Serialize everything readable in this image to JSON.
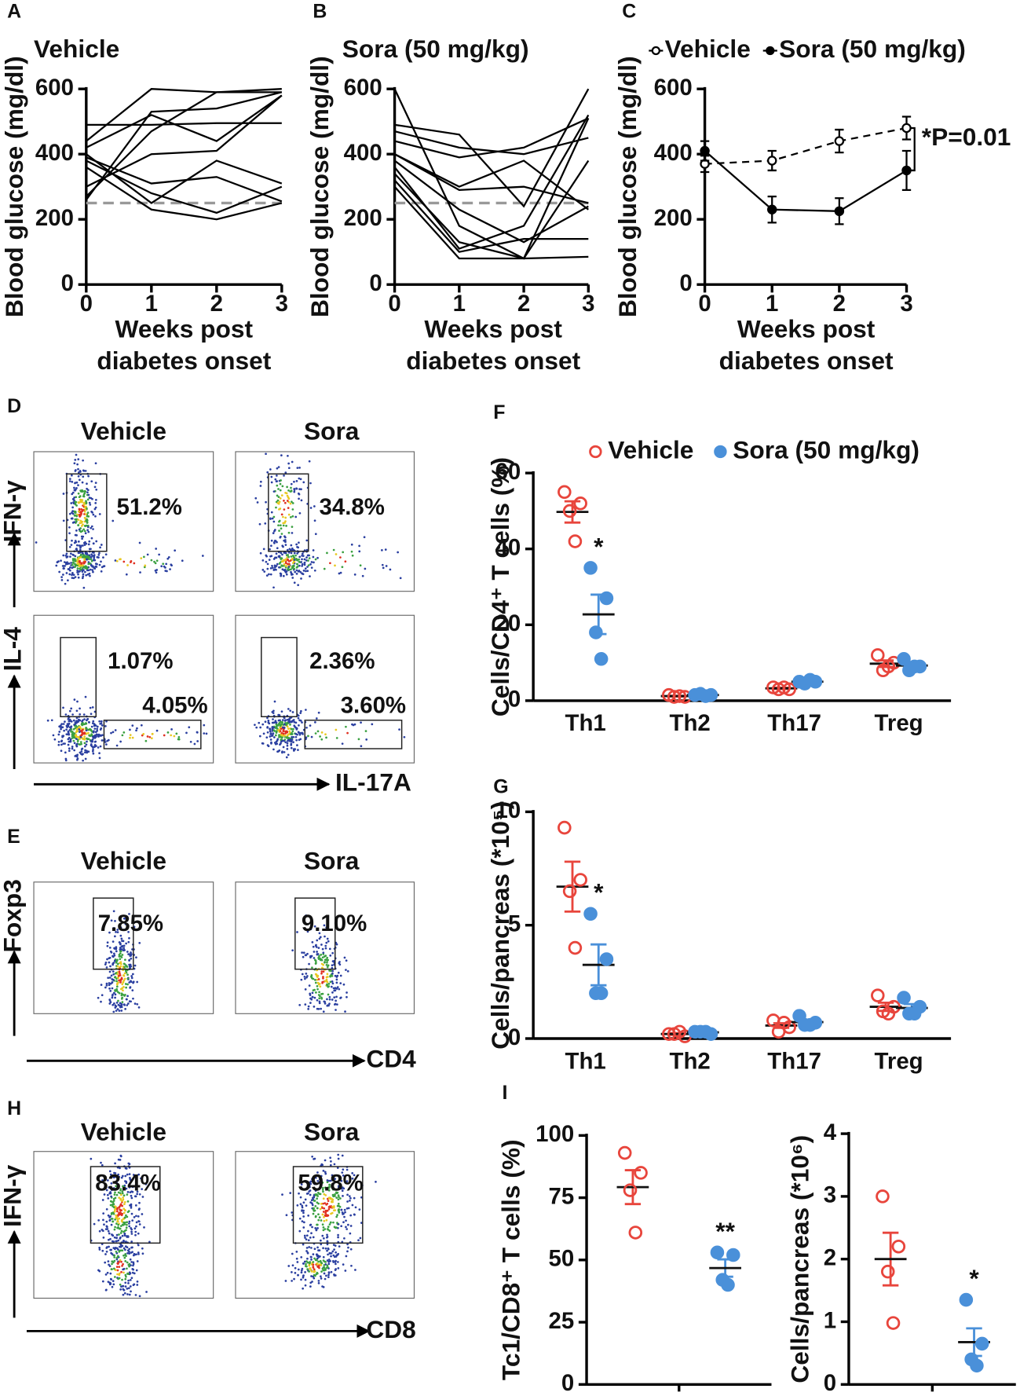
{
  "panel_labels": [
    "A",
    "B",
    "C",
    "D",
    "E",
    "F",
    "G",
    "H",
    "I"
  ],
  "chart_data": [
    {
      "type": "line",
      "title": "Vehicle",
      "ylabel": "Blood glucose (mg/dl)",
      "xlabel": [
        "Weeks post",
        "diabetes onset"
      ],
      "x": [
        0,
        1,
        2,
        3
      ],
      "xlim": [
        0,
        3
      ],
      "xticks": [
        0,
        1,
        2,
        3
      ],
      "ylim": [
        0,
        600
      ],
      "yticks": [
        0,
        200,
        400,
        600
      ],
      "reference_y": 250,
      "reference_color": "#999999",
      "series": [
        {
          "color": "#000000",
          "values": [
            490,
            490,
            495,
            495
          ]
        },
        {
          "color": "#000000",
          "values": [
            440,
            600,
            590,
            600
          ]
        },
        {
          "color": "#000000",
          "values": [
            400,
            250,
            380,
            310
          ]
        },
        {
          "color": "#000000",
          "values": [
            380,
            280,
            220,
            300
          ]
        },
        {
          "color": "#000000",
          "values": [
            360,
            230,
            200,
            250
          ]
        },
        {
          "color": "#000000",
          "values": [
            270,
            470,
            590,
            590
          ]
        },
        {
          "color": "#000000",
          "values": [
            300,
            400,
            410,
            580
          ]
        },
        {
          "color": "#000000",
          "values": [
            420,
            520,
            440,
            580
          ]
        },
        {
          "color": "#000000",
          "values": [
            260,
            530,
            540,
            590
          ]
        },
        {
          "color": "#000000",
          "values": [
            390,
            310,
            330,
            255
          ]
        }
      ]
    },
    {
      "type": "line",
      "title": "Sora (50 mg/kg)",
      "ylabel": "Blood glucose (mg/dl)",
      "xlabel": [
        "Weeks post",
        "diabetes onset"
      ],
      "x": [
        0,
        1,
        2,
        3
      ],
      "xlim": [
        0,
        3
      ],
      "xticks": [
        0,
        1,
        2,
        3
      ],
      "ylim": [
        0,
        600
      ],
      "yticks": [
        0,
        200,
        400,
        600
      ],
      "reference_y": 250,
      "reference_color": "#999999",
      "series": [
        {
          "color": "#000000",
          "values": [
            490,
            460,
            240,
            600
          ]
        },
        {
          "color": "#000000",
          "values": [
            470,
            420,
            400,
            450
          ]
        },
        {
          "color": "#000000",
          "values": [
            440,
            390,
            420,
            510
          ]
        },
        {
          "color": "#000000",
          "values": [
            400,
            290,
            300,
            250
          ]
        },
        {
          "color": "#000000",
          "values": [
            380,
            230,
            130,
            240
          ]
        },
        {
          "color": "#000000",
          "values": [
            360,
            110,
            180,
            520
          ]
        },
        {
          "color": "#000000",
          "values": [
            340,
            130,
            80,
            380
          ]
        },
        {
          "color": "#000000",
          "values": [
            320,
            100,
            140,
            140
          ]
        },
        {
          "color": "#000000",
          "values": [
            300,
            80,
            80,
            85
          ]
        },
        {
          "color": "#000000",
          "values": [
            400,
            300,
            380,
            230
          ]
        },
        {
          "color": "#000000",
          "values": [
            600,
            180,
            80,
            510
          ]
        }
      ]
    },
    {
      "type": "line",
      "ylabel": "Blood glucose (mg/dl)",
      "xlabel": [
        "Weeks post",
        "diabetes onset"
      ],
      "x": [
        0,
        1,
        2,
        3
      ],
      "xlim": [
        0,
        3
      ],
      "xticks": [
        0,
        1,
        2,
        3
      ],
      "ylim": [
        0,
        600
      ],
      "yticks": [
        0,
        200,
        400,
        600
      ],
      "annotation": "*P=0.01",
      "series": [
        {
          "name": "Vehicle",
          "color": "#000000",
          "dashed": true,
          "marker": "open",
          "values": [
            370,
            380,
            440,
            480
          ],
          "errors": [
            25,
            30,
            35,
            35
          ]
        },
        {
          "name": "Sora (50 mg/kg)",
          "color": "#000000",
          "dashed": false,
          "marker": "filled",
          "values": [
            410,
            230,
            225,
            350
          ],
          "errors": [
            30,
            40,
            40,
            60
          ]
        }
      ]
    },
    {
      "type": "strip",
      "ylabel": "Cells/CD4⁺ T cells (%)",
      "categories": [
        "Th1",
        "Th2",
        "Th17",
        "Treg"
      ],
      "ylim": [
        0,
        60
      ],
      "yticks": [
        0,
        20,
        40,
        60
      ],
      "series": [
        {
          "name": "Vehicle",
          "color": "#e8453c",
          "marker": "open",
          "points": [
            [
              55,
              52,
              50,
              42
            ],
            [
              1.5,
              1,
              1,
              1.2
            ],
            [
              3.5,
              3,
              3,
              3.5
            ],
            [
              12,
              10,
              8,
              9
            ]
          ],
          "means": [
            49.75,
            1.2,
            3.25,
            9.75
          ],
          "sems": [
            2.8,
            0.1,
            0.15,
            0.85
          ],
          "significance": [
            null,
            null,
            null,
            null
          ]
        },
        {
          "name": "Sora (50 mg/kg)",
          "color": "#4a90d9",
          "marker": "filled",
          "points": [
            [
              35,
              27,
              18,
              11
            ],
            [
              1.5,
              1.5,
              1.8,
              1.2
            ],
            [
              5,
              5,
              4.5,
              5.5
            ],
            [
              11,
              9,
              8,
              9
            ]
          ],
          "means": [
            22.75,
            1.5,
            5,
            9.25
          ],
          "sems": [
            5.2,
            0.12,
            0.2,
            0.6
          ],
          "significance": [
            "*",
            null,
            null,
            null
          ]
        }
      ]
    },
    {
      "type": "strip",
      "ylabel": "Cells/pancreas (*10⁵)",
      "categories": [
        "Th1",
        "Th2",
        "Th17",
        "Treg"
      ],
      "ylim": [
        0,
        10
      ],
      "yticks": [
        0,
        5,
        10
      ],
      "series": [
        {
          "color": "#e8453c",
          "marker": "open",
          "points": [
            [
              9.3,
              7,
              6.5,
              4
            ],
            [
              0.2,
              0.1,
              0.2,
              0.3
            ],
            [
              0.8,
              0.5,
              0.3,
              0.7
            ],
            [
              1.9,
              1.4,
              1.2,
              1.1
            ]
          ],
          "means": [
            6.7,
            0.2,
            0.575,
            1.4
          ],
          "sems": [
            1.1,
            0.04,
            0.1,
            0.18
          ],
          "significance": [
            null,
            null,
            null,
            null
          ]
        },
        {
          "color": "#4a90d9",
          "marker": "filled",
          "points": [
            [
              5.5,
              3.5,
              2,
              2
            ],
            [
              0.3,
              0.2,
              0.3,
              0.3
            ],
            [
              1,
              0.7,
              0.6,
              0.6
            ],
            [
              1.8,
              1.4,
              1.1,
              1.1
            ]
          ],
          "means": [
            3.25,
            0.275,
            0.725,
            1.35
          ],
          "sems": [
            0.9,
            0.03,
            0.1,
            0.17
          ],
          "significance": [
            "*",
            null,
            null,
            null
          ]
        }
      ]
    },
    {
      "type": "strip",
      "ylabel": "Tc1/CD8⁺ T cells (%)",
      "ylim": [
        0,
        100
      ],
      "yticks": [
        0,
        25,
        50,
        75,
        100
      ],
      "series": [
        {
          "color": "#e8453c",
          "marker": "open",
          "points": [
            93,
            85,
            78,
            61
          ],
          "mean": 79.25,
          "sem": 6.8,
          "significance": null
        },
        {
          "color": "#4a90d9",
          "marker": "filled",
          "points": [
            53,
            52,
            42,
            40
          ],
          "mean": 46.75,
          "sem": 3.5,
          "significance": "**"
        }
      ]
    },
    {
      "type": "strip",
      "ylabel": "Cells/pancreas (*10⁶)",
      "ylim": [
        0,
        4
      ],
      "yticks": [
        0,
        1,
        2,
        3,
        4
      ],
      "series": [
        {
          "color": "#e8453c",
          "marker": "open",
          "points": [
            3,
            2.2,
            1.8,
            0.98
          ],
          "mean": 2.0,
          "sem": 0.42,
          "significance": null
        },
        {
          "color": "#4a90d9",
          "marker": "filled",
          "points": [
            1.35,
            0.65,
            0.4,
            0.3
          ],
          "mean": 0.675,
          "sem": 0.22,
          "significance": "*"
        }
      ]
    }
  ],
  "flow_panels": [
    {
      "titles": [
        "Vehicle",
        "Sora"
      ],
      "y_labels": [
        "IFN-γ",
        "IL-4"
      ],
      "x_label": "IL-17A",
      "percentages": [
        "51.2%",
        "34.8%",
        "1.07%",
        "4.05%",
        "2.36%",
        "3.60%"
      ]
    },
    {
      "titles": [
        "Vehicle",
        "Sora"
      ],
      "y_labels": [
        "Foxp3"
      ],
      "x_label": "CD4",
      "percentages": [
        "7.85%",
        "9.10%"
      ]
    },
    {
      "titles": [
        "Vehicle",
        "Sora"
      ],
      "y_labels": [
        "IFN-γ"
      ],
      "x_label": "CD8",
      "percentages": [
        "83.4%",
        "59.8%"
      ]
    }
  ]
}
